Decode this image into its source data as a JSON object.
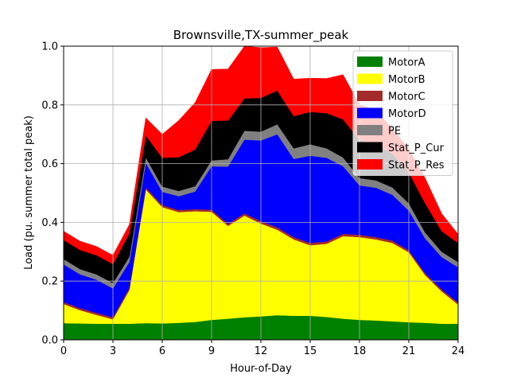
{
  "chart_data": {
    "type": "area",
    "title": "Brownsville,TX-summer_peak",
    "xlabel": "Hour-of-Day",
    "ylabel": "Load (pu. summer total peak)",
    "xlim": [
      0,
      24
    ],
    "ylim": [
      0.0,
      1.0
    ],
    "xticks": [
      0,
      3,
      6,
      9,
      12,
      15,
      18,
      21,
      24
    ],
    "yticks": [
      0.0,
      0.2,
      0.4,
      0.6,
      0.8,
      1.0
    ],
    "xtick_labels": [
      "0",
      "3",
      "6",
      "9",
      "12",
      "15",
      "18",
      "21",
      "24"
    ],
    "ytick_labels": [
      "0.0",
      "0.2",
      "0.4",
      "0.6",
      "0.8",
      "1.0"
    ],
    "grid": true,
    "stacked": true,
    "legend_position": "top-right",
    "x": [
      0,
      1,
      2,
      3,
      4,
      5,
      6,
      7,
      8,
      9,
      10,
      11,
      12,
      13,
      14,
      15,
      16,
      17,
      18,
      19,
      20,
      21,
      22,
      23,
      24
    ],
    "series": [
      {
        "name": "MotorA",
        "color": "#008000",
        "values": [
          0.057,
          0.056,
          0.055,
          0.055,
          0.055,
          0.057,
          0.056,
          0.058,
          0.061,
          0.068,
          0.072,
          0.077,
          0.08,
          0.084,
          0.082,
          0.082,
          0.078,
          0.072,
          0.068,
          0.066,
          0.063,
          0.06,
          0.058,
          0.055,
          0.055
        ]
      },
      {
        "name": "MotorB",
        "color": "#ffff00",
        "values": [
          0.065,
          0.045,
          0.03,
          0.015,
          0.115,
          0.455,
          0.396,
          0.377,
          0.377,
          0.368,
          0.316,
          0.346,
          0.316,
          0.291,
          0.26,
          0.24,
          0.249,
          0.281,
          0.282,
          0.276,
          0.267,
          0.238,
          0.162,
          0.11,
          0.065
        ]
      },
      {
        "name": "MotorC",
        "color": "#a52a2a",
        "values": [
          0.007,
          0.007,
          0.007,
          0.007,
          0.007,
          0.007,
          0.007,
          0.007,
          0.007,
          0.007,
          0.007,
          0.008,
          0.008,
          0.008,
          0.008,
          0.008,
          0.008,
          0.008,
          0.008,
          0.008,
          0.008,
          0.007,
          0.007,
          0.007,
          0.007
        ]
      },
      {
        "name": "MotorD",
        "color": "#0000ff",
        "values": [
          0.128,
          0.115,
          0.113,
          0.098,
          0.088,
          0.084,
          0.045,
          0.047,
          0.06,
          0.148,
          0.195,
          0.251,
          0.275,
          0.317,
          0.266,
          0.297,
          0.285,
          0.23,
          0.168,
          0.168,
          0.156,
          0.135,
          0.118,
          0.11,
          0.12
        ]
      },
      {
        "name": "PE",
        "color": "#808080",
        "values": [
          0.018,
          0.018,
          0.018,
          0.018,
          0.018,
          0.018,
          0.018,
          0.018,
          0.018,
          0.02,
          0.025,
          0.03,
          0.03,
          0.034,
          0.036,
          0.039,
          0.032,
          0.03,
          0.025,
          0.025,
          0.025,
          0.025,
          0.02,
          0.018,
          0.018
        ]
      },
      {
        "name": "Stat_P_Cur",
        "color": "#000000",
        "values": [
          0.065,
          0.065,
          0.065,
          0.065,
          0.08,
          0.075,
          0.098,
          0.115,
          0.125,
          0.135,
          0.132,
          0.11,
          0.115,
          0.115,
          0.11,
          0.11,
          0.12,
          0.13,
          0.13,
          0.12,
          0.115,
          0.105,
          0.1,
          0.07,
          0.065
        ]
      },
      {
        "name": "Stat_P_Res",
        "color": "#ff0000",
        "values": [
          0.03,
          0.03,
          0.03,
          0.03,
          0.03,
          0.06,
          0.08,
          0.125,
          0.16,
          0.175,
          0.175,
          0.178,
          0.171,
          0.148,
          0.126,
          0.115,
          0.118,
          0.152,
          0.12,
          0.118,
          0.085,
          0.08,
          0.085,
          0.06,
          0.03
        ]
      }
    ]
  }
}
